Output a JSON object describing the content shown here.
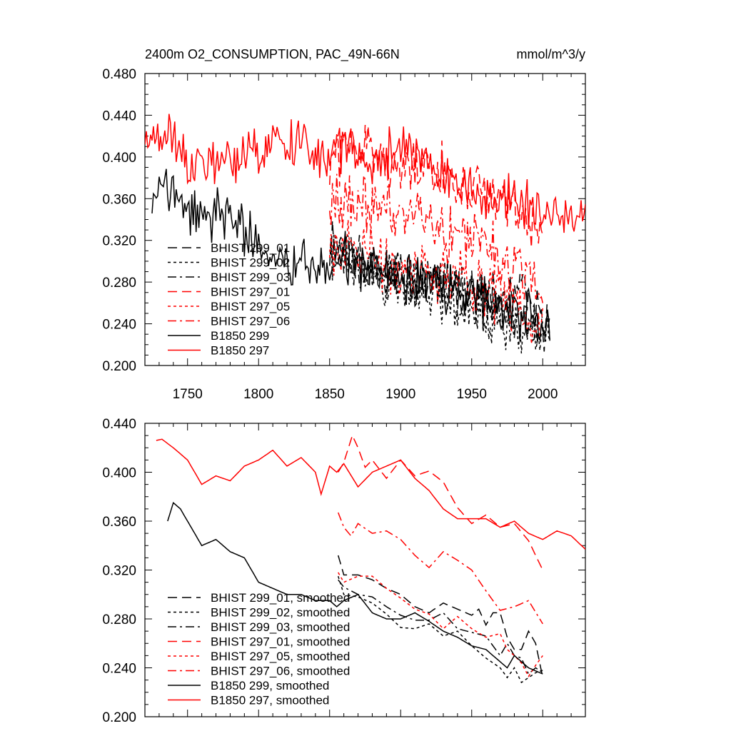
{
  "colors": {
    "black": "#000000",
    "red": "#ff0000"
  },
  "top_chart": {
    "title_left": "2400m O2_CONSUMPTION, PAC_49N-66N",
    "title_right": "mmol/m^3/y",
    "y_ticks": [
      "0.200",
      "0.240",
      "0.280",
      "0.320",
      "0.360",
      "0.400",
      "0.440",
      "0.480"
    ],
    "x_ticks": [
      "1750",
      "1800",
      "1850",
      "1900",
      "1950",
      "2000"
    ],
    "legend": [
      "BHIST 299_01",
      "BHIST 299_02",
      "BHIST 299_03",
      "BHIST 297_01",
      "BHIST 297_05",
      "BHIST 297_06",
      "B1850 299",
      "B1850 297"
    ]
  },
  "bottom_chart": {
    "y_ticks": [
      "0.200",
      "0.240",
      "0.280",
      "0.320",
      "0.360",
      "0.400",
      "0.440"
    ],
    "legend": [
      "BHIST 299_01, smoothed",
      "BHIST 299_02, smoothed",
      "BHIST 299_03, smoothed",
      "BHIST 297_01, smoothed",
      "BHIST 297_05, smoothed",
      "BHIST 297_06, smoothed",
      "B1850 299, smoothed",
      "B1850 297, smoothed"
    ]
  },
  "chart_data": [
    {
      "type": "line",
      "title": "2400m O2_CONSUMPTION, PAC_49N-66N",
      "units": "mmol/m^3/y",
      "xlabel": "",
      "ylabel": "",
      "xlim": [
        1720,
        2030
      ],
      "ylim": [
        0.2,
        0.48
      ],
      "xticks": [
        1750,
        1800,
        1850,
        1900,
        1950,
        2000
      ],
      "yticks": [
        0.2,
        0.24,
        0.28,
        0.32,
        0.36,
        0.4,
        0.44,
        0.48
      ],
      "series": [
        {
          "name": "BHIST 299_01",
          "color": "black",
          "dash": "dashed",
          "x": [
            1850,
            1860,
            1870,
            1880,
            1890,
            1900,
            1910,
            1920,
            1930,
            1940,
            1950,
            1960,
            1970,
            1975,
            1980,
            1985,
            1990,
            1995,
            2000,
            2005
          ],
          "y": [
            0.325,
            0.31,
            0.305,
            0.3,
            0.295,
            0.29,
            0.285,
            0.28,
            0.278,
            0.275,
            0.27,
            0.265,
            0.26,
            0.265,
            0.27,
            0.275,
            0.26,
            0.25,
            0.24,
            0.235
          ],
          "amp": 0.03,
          "seed": 11
        },
        {
          "name": "BHIST 299_02",
          "color": "black",
          "dash": "dotted",
          "x": [
            1850,
            1860,
            1870,
            1880,
            1890,
            1900,
            1910,
            1920,
            1930,
            1940,
            1950,
            1960,
            1970,
            1975,
            1980,
            1985,
            1990,
            1995,
            2000,
            2005
          ],
          "y": [
            0.31,
            0.3,
            0.295,
            0.29,
            0.28,
            0.275,
            0.27,
            0.27,
            0.265,
            0.26,
            0.255,
            0.25,
            0.245,
            0.24,
            0.235,
            0.23,
            0.228,
            0.232,
            0.235,
            0.238
          ],
          "amp": 0.03,
          "seed": 22
        },
        {
          "name": "BHIST 299_03",
          "color": "black",
          "dash": "dashdot",
          "x": [
            1850,
            1860,
            1870,
            1880,
            1890,
            1900,
            1910,
            1920,
            1930,
            1940,
            1950,
            1960,
            1970,
            1975,
            1980,
            1985,
            1990,
            1995,
            2000,
            2005
          ],
          "y": [
            0.31,
            0.305,
            0.3,
            0.295,
            0.29,
            0.285,
            0.28,
            0.285,
            0.28,
            0.275,
            0.27,
            0.26,
            0.255,
            0.25,
            0.252,
            0.255,
            0.245,
            0.24,
            0.238,
            0.236
          ],
          "amp": 0.03,
          "seed": 33
        },
        {
          "name": "BHIST 297_01",
          "color": "red",
          "dash": "dashed",
          "x": [
            1850,
            1860,
            1866,
            1870,
            1880,
            1890,
            1900,
            1910,
            1920,
            1930,
            1940,
            1950,
            1960,
            1970,
            1980,
            1990,
            2000
          ],
          "y": [
            0.39,
            0.41,
            0.43,
            0.415,
            0.405,
            0.395,
            0.385,
            0.38,
            0.39,
            0.385,
            0.375,
            0.365,
            0.365,
            0.36,
            0.355,
            0.34,
            0.32
          ],
          "amp": 0.035,
          "seed": 44
        },
        {
          "name": "BHIST 297_05",
          "color": "red",
          "dash": "dotted",
          "x": [
            1850,
            1860,
            1870,
            1880,
            1890,
            1900,
            1910,
            1920,
            1930,
            1940,
            1950,
            1960,
            1970,
            1980,
            1990,
            2000
          ],
          "y": [
            0.32,
            0.315,
            0.31,
            0.305,
            0.3,
            0.295,
            0.295,
            0.29,
            0.285,
            0.28,
            0.275,
            0.27,
            0.265,
            0.255,
            0.24,
            0.245
          ],
          "amp": 0.035,
          "seed": 55
        },
        {
          "name": "BHIST 297_06",
          "color": "red",
          "dash": "dashdot",
          "x": [
            1850,
            1860,
            1870,
            1880,
            1890,
            1900,
            1910,
            1920,
            1930,
            1940,
            1950,
            1960,
            1970,
            1980,
            1990,
            2000
          ],
          "y": [
            0.365,
            0.355,
            0.355,
            0.35,
            0.35,
            0.345,
            0.345,
            0.34,
            0.33,
            0.325,
            0.33,
            0.32,
            0.3,
            0.295,
            0.29,
            0.28
          ],
          "amp": 0.035,
          "seed": 66
        },
        {
          "name": "B1850 299",
          "color": "black",
          "dash": "solid",
          "x": [
            1725,
            1730,
            1740,
            1750,
            1760,
            1770,
            1780,
            1790,
            1800,
            1810,
            1820,
            1830,
            1840,
            1850,
            1860,
            1870,
            1880,
            1890,
            1900,
            1910,
            1920,
            1930,
            1940,
            1950,
            1960,
            1970,
            1980,
            1990,
            2000,
            2005
          ],
          "y": [
            0.36,
            0.375,
            0.365,
            0.345,
            0.34,
            0.345,
            0.34,
            0.33,
            0.31,
            0.305,
            0.3,
            0.295,
            0.29,
            0.295,
            0.3,
            0.3,
            0.29,
            0.285,
            0.28,
            0.28,
            0.28,
            0.275,
            0.27,
            0.265,
            0.26,
            0.255,
            0.25,
            0.245,
            0.24,
            0.24
          ],
          "amp": 0.03,
          "seed": 77
        },
        {
          "name": "B1850 297",
          "color": "red",
          "dash": "solid",
          "x": [
            1720,
            1730,
            1740,
            1750,
            1760,
            1770,
            1780,
            1790,
            1800,
            1810,
            1820,
            1830,
            1840,
            1850,
            1860,
            1870,
            1880,
            1890,
            1900,
            1910,
            1920,
            1930,
            1940,
            1950,
            1960,
            1970,
            1980,
            1990,
            2000,
            2010,
            2020,
            2030
          ],
          "y": [
            0.425,
            0.422,
            0.418,
            0.4,
            0.39,
            0.395,
            0.395,
            0.4,
            0.405,
            0.415,
            0.41,
            0.41,
            0.39,
            0.405,
            0.405,
            0.4,
            0.395,
            0.4,
            0.41,
            0.4,
            0.395,
            0.38,
            0.37,
            0.365,
            0.36,
            0.355,
            0.36,
            0.355,
            0.35,
            0.345,
            0.35,
            0.34
          ],
          "amp": 0.028,
          "seed": 88
        }
      ]
    },
    {
      "type": "line",
      "title": "",
      "xlabel": "",
      "ylabel": "",
      "xlim": [
        1720,
        2030
      ],
      "ylim": [
        0.2,
        0.44
      ],
      "xticks": [
        1750,
        1800,
        1850,
        1900,
        1950,
        2000
      ],
      "yticks": [
        0.2,
        0.24,
        0.28,
        0.32,
        0.36,
        0.4,
        0.44
      ],
      "series": [
        {
          "name": "BHIST 299_01, smoothed",
          "color": "black",
          "dash": "dashed",
          "x": [
            1856,
            1860,
            1870,
            1880,
            1890,
            1900,
            1910,
            1920,
            1930,
            1940,
            1950,
            1955,
            1960,
            1965,
            1970,
            1975,
            1980,
            1985,
            1990,
            1995,
            2000
          ],
          "y": [
            0.332,
            0.316,
            0.316,
            0.312,
            0.305,
            0.3,
            0.29,
            0.285,
            0.293,
            0.288,
            0.283,
            0.288,
            0.275,
            0.285,
            0.285,
            0.265,
            0.255,
            0.255,
            0.27,
            0.26,
            0.232
          ]
        },
        {
          "name": "BHIST 299_02, smoothed",
          "color": "black",
          "dash": "dotted",
          "x": [
            1856,
            1860,
            1870,
            1880,
            1890,
            1900,
            1910,
            1920,
            1930,
            1940,
            1950,
            1960,
            1970,
            1975,
            1980,
            1985,
            1990,
            1995,
            2000
          ],
          "y": [
            0.315,
            0.3,
            0.298,
            0.293,
            0.284,
            0.273,
            0.272,
            0.276,
            0.266,
            0.27,
            0.258,
            0.248,
            0.24,
            0.232,
            0.24,
            0.228,
            0.232,
            0.236,
            0.238
          ]
        },
        {
          "name": "BHIST 299_03, smoothed",
          "color": "black",
          "dash": "dashdot",
          "x": [
            1856,
            1860,
            1870,
            1880,
            1890,
            1900,
            1910,
            1920,
            1930,
            1940,
            1950,
            1960,
            1970,
            1975,
            1980,
            1985,
            1990,
            1995,
            2000
          ],
          "y": [
            0.312,
            0.306,
            0.3,
            0.298,
            0.29,
            0.283,
            0.279,
            0.279,
            0.285,
            0.272,
            0.269,
            0.266,
            0.25,
            0.26,
            0.25,
            0.248,
            0.235,
            0.24,
            0.236
          ]
        },
        {
          "name": "BHIST 297_01, smoothed",
          "color": "red",
          "dash": "dashed",
          "x": [
            1856,
            1860,
            1866,
            1870,
            1875,
            1880,
            1890,
            1900,
            1910,
            1920,
            1930,
            1940,
            1950,
            1960,
            1970,
            1980,
            1990,
            2000
          ],
          "y": [
            0.4,
            0.408,
            0.43,
            0.42,
            0.404,
            0.41,
            0.395,
            0.41,
            0.397,
            0.401,
            0.392,
            0.371,
            0.358,
            0.365,
            0.355,
            0.358,
            0.344,
            0.32
          ]
        },
        {
          "name": "BHIST 297_05, smoothed",
          "color": "red",
          "dash": "dotted",
          "x": [
            1856,
            1860,
            1870,
            1880,
            1890,
            1900,
            1910,
            1920,
            1930,
            1940,
            1950,
            1960,
            1970,
            1975,
            1980,
            1985,
            1990,
            1995,
            2000
          ],
          "y": [
            0.318,
            0.31,
            0.315,
            0.315,
            0.305,
            0.297,
            0.288,
            0.284,
            0.272,
            0.282,
            0.272,
            0.265,
            0.268,
            0.255,
            0.25,
            0.244,
            0.233,
            0.242,
            0.25
          ]
        },
        {
          "name": "BHIST 297_06, smoothed",
          "color": "red",
          "dash": "dashdot",
          "x": [
            1856,
            1860,
            1865,
            1870,
            1880,
            1890,
            1900,
            1910,
            1920,
            1930,
            1940,
            1950,
            1960,
            1970,
            1980,
            1990,
            2000
          ],
          "y": [
            0.367,
            0.355,
            0.348,
            0.358,
            0.35,
            0.352,
            0.345,
            0.332,
            0.322,
            0.335,
            0.328,
            0.32,
            0.303,
            0.287,
            0.29,
            0.295,
            0.276
          ]
        },
        {
          "name": "B1850 299, smoothed",
          "color": "black",
          "dash": "solid",
          "x": [
            1736,
            1740,
            1745,
            1750,
            1760,
            1770,
            1780,
            1790,
            1800,
            1810,
            1820,
            1830,
            1840,
            1850,
            1855,
            1860,
            1870,
            1880,
            1890,
            1900,
            1910,
            1920,
            1930,
            1940,
            1950,
            1960,
            1970,
            1975,
            1980,
            1990,
            2000
          ],
          "y": [
            0.36,
            0.375,
            0.37,
            0.36,
            0.34,
            0.345,
            0.335,
            0.33,
            0.31,
            0.305,
            0.3,
            0.3,
            0.295,
            0.295,
            0.29,
            0.295,
            0.3,
            0.285,
            0.28,
            0.28,
            0.285,
            0.278,
            0.27,
            0.265,
            0.258,
            0.255,
            0.245,
            0.24,
            0.25,
            0.24,
            0.235
          ]
        },
        {
          "name": "B1850 297, smoothed",
          "color": "red",
          "dash": "solid",
          "x": [
            1728,
            1732,
            1740,
            1750,
            1760,
            1770,
            1780,
            1790,
            1800,
            1810,
            1820,
            1830,
            1840,
            1844,
            1850,
            1855,
            1860,
            1870,
            1880,
            1890,
            1900,
            1910,
            1920,
            1930,
            1940,
            1950,
            1960,
            1970,
            1980,
            1990,
            2000,
            2010,
            2020,
            2030
          ],
          "y": [
            0.426,
            0.427,
            0.42,
            0.41,
            0.39,
            0.397,
            0.393,
            0.405,
            0.41,
            0.418,
            0.405,
            0.412,
            0.4,
            0.382,
            0.405,
            0.4,
            0.407,
            0.388,
            0.4,
            0.405,
            0.41,
            0.395,
            0.385,
            0.37,
            0.362,
            0.362,
            0.362,
            0.355,
            0.36,
            0.35,
            0.345,
            0.352,
            0.348,
            0.337
          ]
        }
      ]
    }
  ]
}
